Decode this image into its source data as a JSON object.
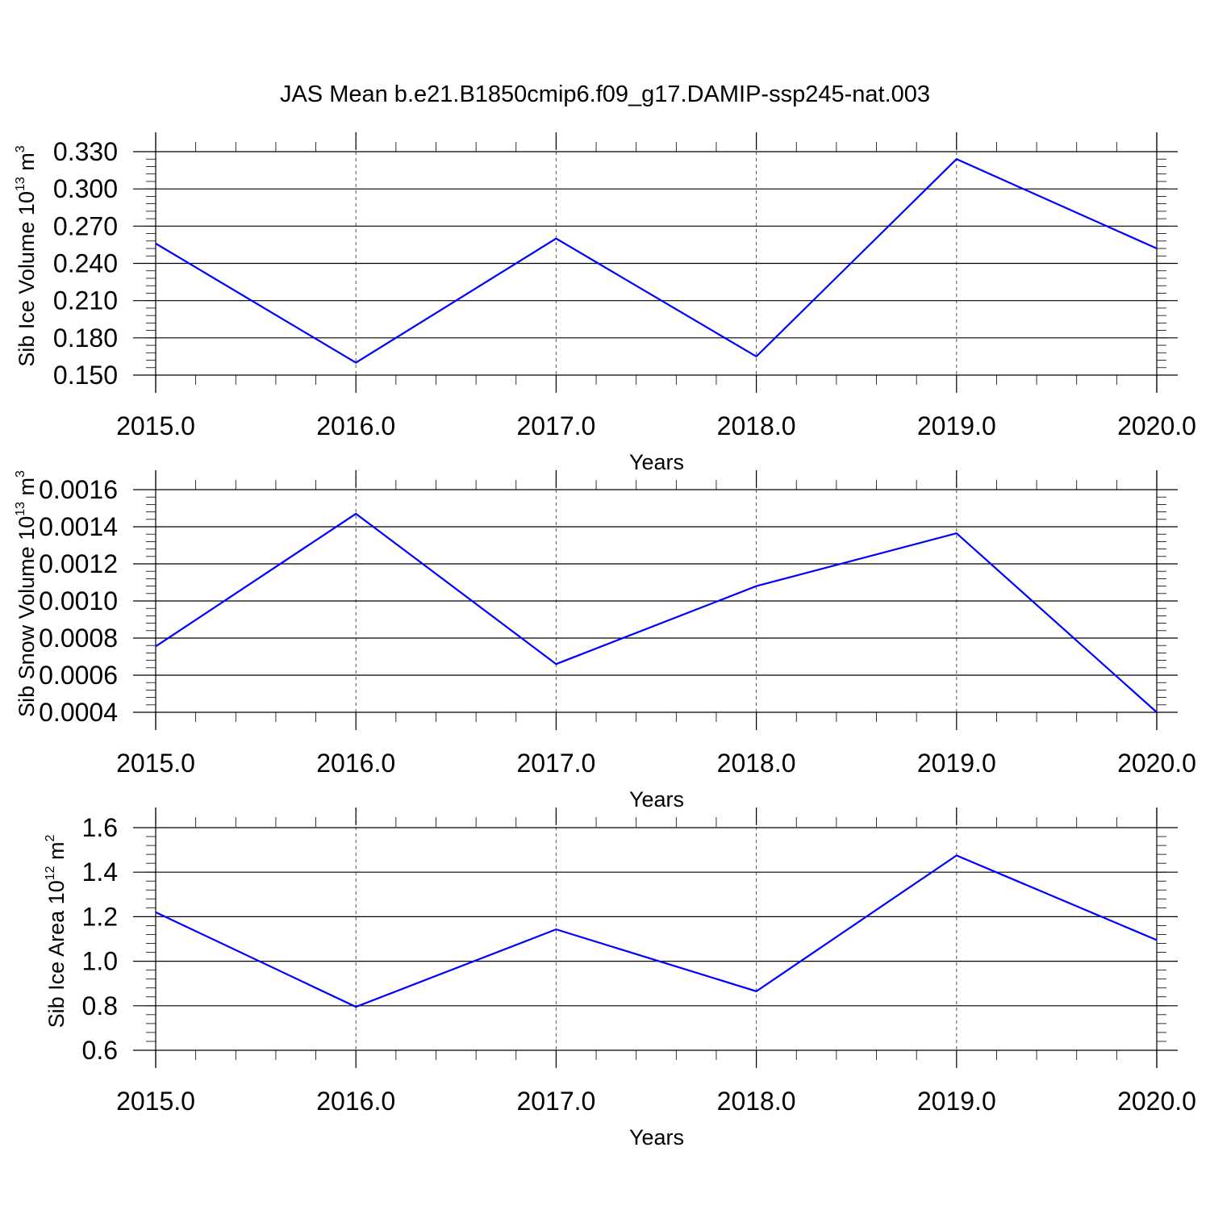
{
  "title": "JAS Mean b.e21.B1850cmip6.f09_g17.DAMIP-ssp245-nat.003",
  "line_color": "#0000ff",
  "chart_data": [
    {
      "type": "line",
      "title": "JAS Mean b.e21.B1850cmip6.f09_g17.DAMIP-ssp245-nat.003",
      "xlabel": "Years",
      "ylabel": {
        "base": "Sib Ice Volume 10",
        "exp": "13",
        "unit": " m",
        "unit_exp": "3"
      },
      "x": [
        2015,
        2016,
        2017,
        2018,
        2019,
        2020
      ],
      "xlim": [
        2015,
        2020.1
      ],
      "ylim": [
        0.15,
        0.33
      ],
      "xticks": [
        "2015.0",
        "2016.0",
        "2017.0",
        "2018.0",
        "2019.0",
        "2020.0"
      ],
      "yticks": [
        "0.150",
        "0.180",
        "0.210",
        "0.240",
        "0.270",
        "0.300",
        "0.330"
      ],
      "ytick_values": [
        0.15,
        0.18,
        0.21,
        0.24,
        0.27,
        0.3,
        0.33
      ],
      "yminor_step": 0.006,
      "y": [
        0.256,
        0.16,
        0.26,
        0.165,
        0.324,
        0.252
      ],
      "grid": "dashed vertical at years"
    },
    {
      "type": "line",
      "xlabel": "Years",
      "ylabel": {
        "base": "Sib Snow Volume 10",
        "exp": "13",
        "unit": " m",
        "unit_exp": "3"
      },
      "x": [
        2015,
        2016,
        2017,
        2018,
        2019,
        2020
      ],
      "xlim": [
        2015,
        2020.1
      ],
      "ylim": [
        0.0004,
        0.0016
      ],
      "xticks": [
        "2015.0",
        "2016.0",
        "2017.0",
        "2018.0",
        "2019.0",
        "2020.0"
      ],
      "yticks": [
        "0.0004",
        "0.0006",
        "0.0008",
        "0.0010",
        "0.0012",
        "0.0014",
        "0.0016"
      ],
      "ytick_values": [
        0.0004,
        0.0006,
        0.0008,
        0.001,
        0.0012,
        0.0014,
        0.0016
      ],
      "yminor_step": 4e-05,
      "y": [
        0.000755,
        0.00147,
        0.00066,
        0.00108,
        0.001365,
        0.0004
      ],
      "grid": "dashed vertical at years"
    },
    {
      "type": "line",
      "xlabel": "Years",
      "ylabel": {
        "base": "Sib Ice Area 10",
        "exp": "12",
        "unit": " m",
        "unit_exp": "2"
      },
      "x": [
        2015,
        2016,
        2017,
        2018,
        2019,
        2020
      ],
      "xlim": [
        2015,
        2020.1
      ],
      "ylim": [
        0.6,
        1.6
      ],
      "xticks": [
        "2015.0",
        "2016.0",
        "2017.0",
        "2018.0",
        "2019.0",
        "2020.0"
      ],
      "yticks": [
        "0.6",
        "0.8",
        "1.0",
        "1.2",
        "1.4",
        "1.6"
      ],
      "ytick_values": [
        0.6,
        0.8,
        1.0,
        1.2,
        1.4,
        1.6
      ],
      "yminor_step": 0.04,
      "y": [
        1.22,
        0.795,
        1.143,
        0.865,
        1.475,
        1.095
      ],
      "grid": "dashed vertical at years"
    }
  ]
}
